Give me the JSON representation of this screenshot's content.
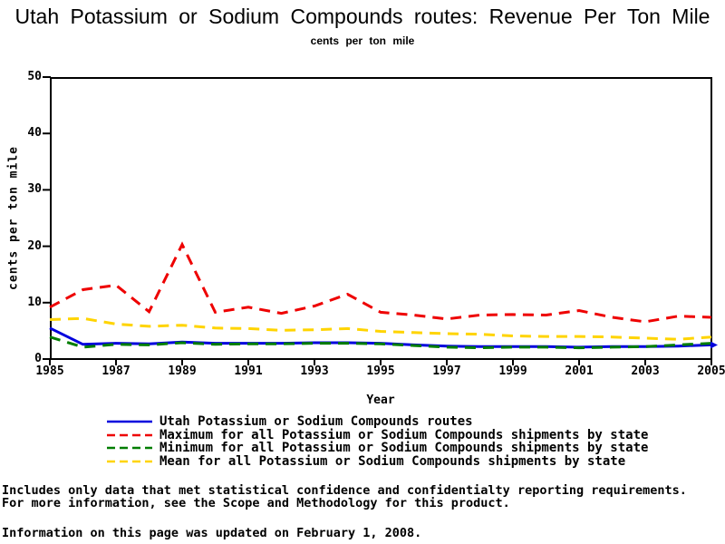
{
  "chart_data": {
    "type": "line",
    "title": "Utah Potassium or Sodium Compounds routes: Revenue Per Ton Mile",
    "subtitle": "cents per ton mile",
    "xlabel": "Year",
    "ylabel": "cents per ton mile",
    "ylim": [
      0,
      50
    ],
    "grid": false,
    "legend_position": "bottom",
    "x": [
      1985,
      1986,
      1987,
      1988,
      1989,
      1990,
      1991,
      1992,
      1993,
      1994,
      1995,
      1996,
      1997,
      1998,
      1999,
      2000,
      2001,
      2002,
      2003,
      2004,
      2005
    ],
    "x_ticks": [
      1985,
      1987,
      1989,
      1991,
      1993,
      1995,
      1997,
      1999,
      2001,
      2003,
      2005
    ],
    "y_ticks": [
      0,
      10,
      20,
      30,
      40,
      50
    ],
    "series": [
      {
        "name": "Utah Potassium or Sodium Compounds routes",
        "color": "#0000dd",
        "style": "solid",
        "values": [
          5.5,
          2.6,
          2.8,
          2.7,
          3.0,
          2.8,
          2.8,
          2.8,
          2.9,
          2.9,
          2.8,
          2.5,
          2.3,
          2.2,
          2.2,
          2.2,
          2.1,
          2.2,
          2.2,
          2.3,
          2.5
        ]
      },
      {
        "name": "Maximum for all Potassium or Sodium Compounds shipments by state",
        "color": "#ee0000",
        "style": "dashed",
        "values": [
          9.2,
          12.3,
          13.1,
          8.4,
          20.3,
          8.3,
          9.2,
          8.1,
          9.4,
          11.5,
          8.3,
          7.8,
          7.1,
          7.8,
          7.9,
          7.8,
          8.6,
          7.4,
          6.6,
          7.6,
          7.4
        ]
      },
      {
        "name": "Minimum for all Potassium or Sodium Compounds shipments by state",
        "color": "#007d00",
        "style": "dashed",
        "values": [
          3.9,
          2.1,
          2.6,
          2.5,
          2.9,
          2.6,
          2.7,
          2.7,
          2.8,
          2.8,
          2.7,
          2.4,
          2.1,
          2.0,
          2.1,
          2.1,
          2.0,
          2.1,
          2.2,
          2.5,
          2.8
        ]
      },
      {
        "name": "Mean for all Potassium or Sodium Compounds shipments by state",
        "color": "#ffd400",
        "style": "dashed",
        "values": [
          7.0,
          7.2,
          6.2,
          5.8,
          6.0,
          5.5,
          5.4,
          5.1,
          5.2,
          5.4,
          4.9,
          4.7,
          4.5,
          4.4,
          4.1,
          4.0,
          4.0,
          3.9,
          3.7,
          3.5,
          3.9
        ]
      }
    ]
  },
  "footer": {
    "note1": "Includes only data that met statistical confidence and confidentialty reporting requirements.",
    "note2": "For more information, see the Scope and Methodology for this product.",
    "updated": "Information on this page was updated on February 1, 2008."
  }
}
